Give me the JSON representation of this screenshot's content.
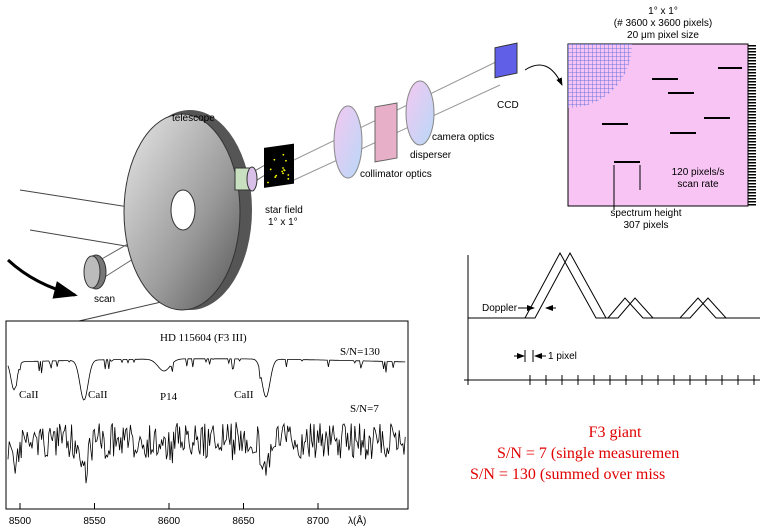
{
  "instrument": {
    "telescope": "telescope",
    "scan": "scan",
    "star_field": "star field",
    "field_size": "1° x 1°",
    "collimator": "collimator optics",
    "disperser": "disperser",
    "camera": "camera optics",
    "ccd": "CCD"
  },
  "ccd_panel": {
    "field_size": "1° x 1°",
    "pixels": "(# 3600 x 3600 pixels)",
    "pixel_size": "20 μm pixel size",
    "scan_rate_1": "120 pixels/s",
    "scan_rate_2": "scan rate",
    "height_1": "spectrum height",
    "height_2": "307 pixels"
  },
  "doppler_panel": {
    "doppler": "Doppler",
    "pixel": "1 pixel"
  },
  "spectrum": {
    "title": "HD 115604 (F3 III)",
    "sn_high": "S/N=130",
    "sn_low": "S/N=7",
    "lines": [
      "CaII",
      "CaII",
      "P14",
      "CaII"
    ],
    "xticks": [
      8500,
      8550,
      8600,
      8650,
      8700
    ],
    "xlabel": "λ(Å)"
  },
  "caption": {
    "line1": "F3 giant",
    "line2": "S/N = 7 (single measuremen",
    "line3": "S/N = 130 (summed over miss"
  }
}
